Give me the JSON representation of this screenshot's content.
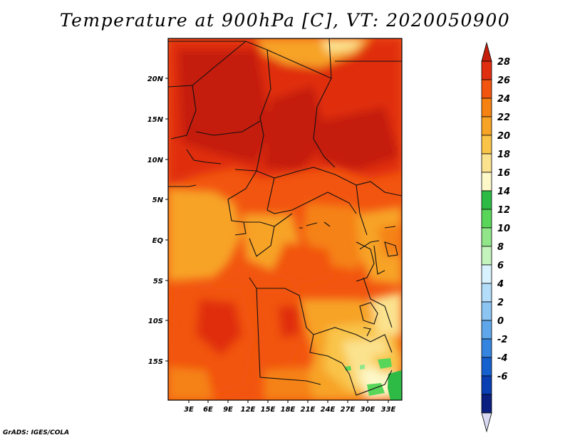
{
  "title": "Temperature at 900hPa [C], VT: 2020050900",
  "credit": "GrADS: IGES/COLA",
  "map": {
    "lon_ticks": [
      "3E",
      "6E",
      "9E",
      "12E",
      "15E",
      "18E",
      "21E",
      "24E",
      "27E",
      "30E",
      "33E"
    ],
    "lat_ticks": [
      "20N",
      "15N",
      "10N",
      "5N",
      "EQ",
      "5S",
      "10S",
      "15S"
    ]
  },
  "colorbar": {
    "labels": [
      "28",
      "26",
      "24",
      "22",
      "20",
      "18",
      "16",
      "14",
      "12",
      "10",
      "8",
      "6",
      "4",
      "2",
      "0",
      "-2",
      "-4",
      "-6"
    ],
    "colors": [
      "#c41f0a",
      "#e02e10",
      "#f25510",
      "#f58213",
      "#f7a326",
      "#f9c448",
      "#fbe28e",
      "#fdf8c8",
      "#2ebb45",
      "#59d65a",
      "#91e68a",
      "#c3f4bc",
      "#d9f2ff",
      "#b3ddf9",
      "#8cc4f2",
      "#5fa7ea",
      "#3585e0",
      "#1560cf",
      "#0a3eb3",
      "#0a1f80",
      "#d8d8f2"
    ]
  },
  "chart_data": {
    "type": "heatmap",
    "title": "Temperature at 900hPa [C], VT: 2020050900",
    "x_range_deg": [
      0,
      34
    ],
    "y_range_deg": [
      -20,
      24
    ],
    "color_levels": [
      -6,
      -4,
      -2,
      0,
      2,
      4,
      6,
      8,
      10,
      12,
      14,
      16,
      18,
      20,
      22,
      24,
      26,
      28
    ]
  }
}
